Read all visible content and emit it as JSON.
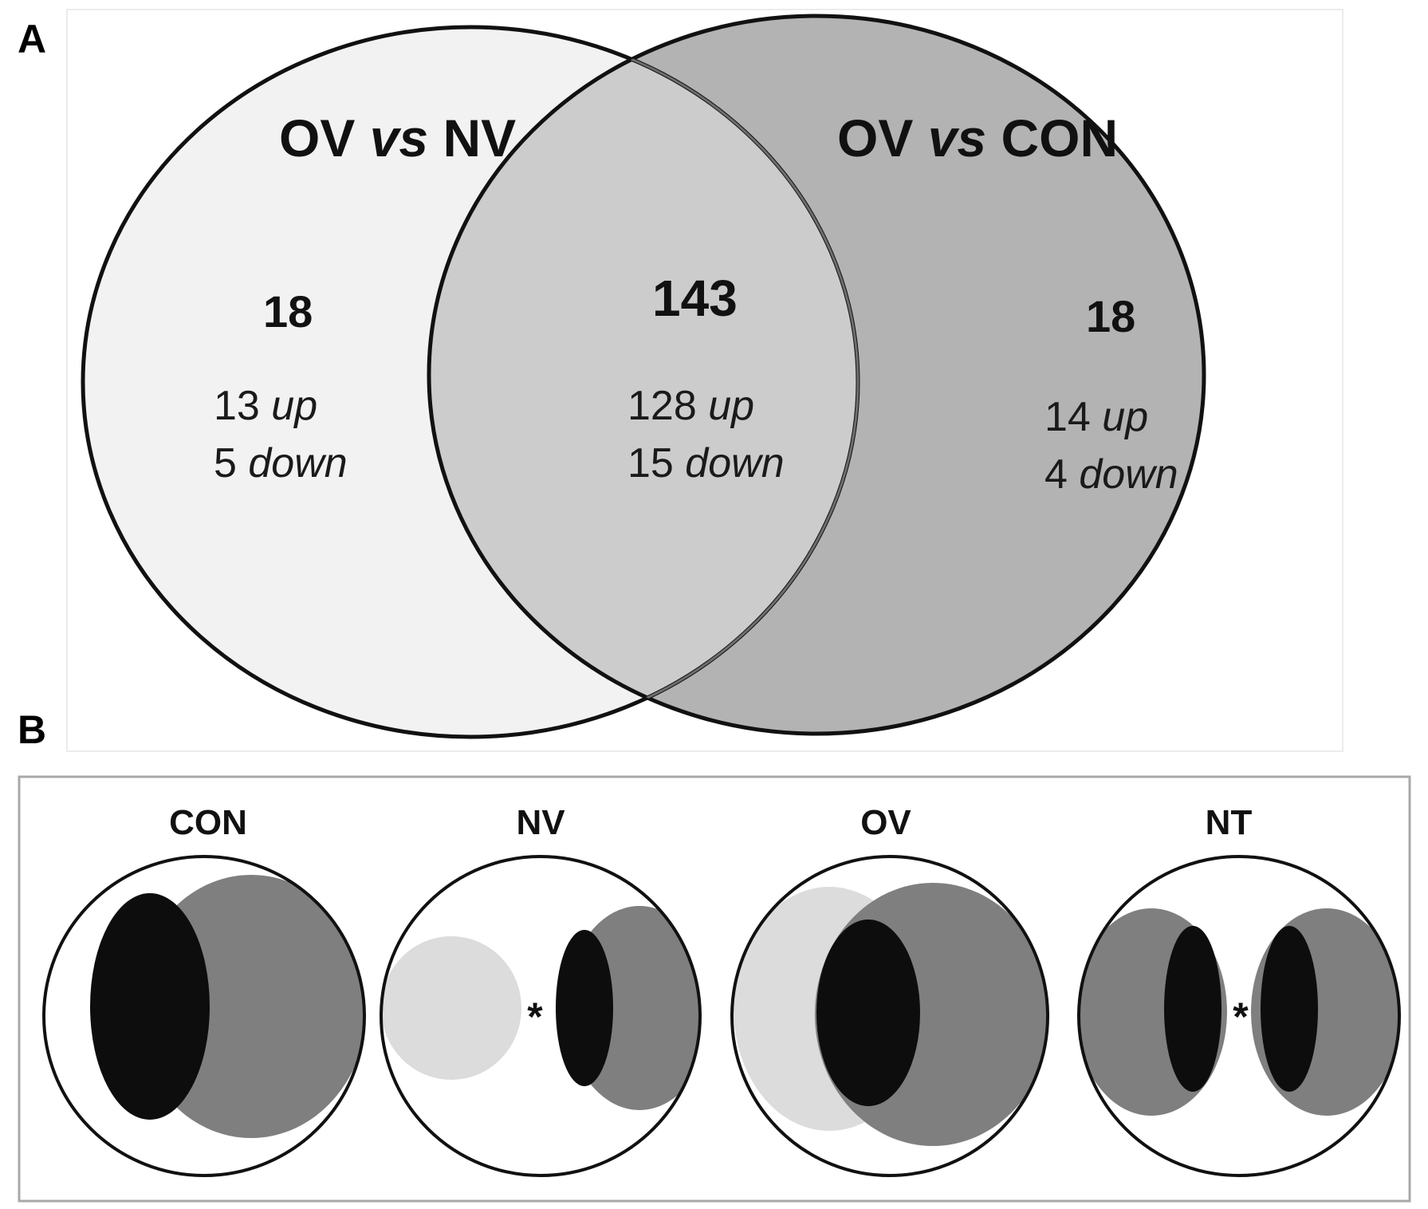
{
  "panel_a": {
    "label": "A",
    "left_set": {
      "prefix": "OV ",
      "vs": "vs",
      "suffix": " NV",
      "count": "18",
      "up_num": "13",
      "up_word": "up",
      "down_num": "5",
      "down_word": "down"
    },
    "right_set": {
      "prefix": "OV ",
      "vs": "vs",
      "suffix": " CON",
      "count": "18",
      "up_num": "14",
      "up_word": "up",
      "down_num": "4",
      "down_word": "down"
    },
    "overlap": {
      "count": "143",
      "up_num": "128",
      "up_word": "up",
      "down_num": "15",
      "down_word": "down"
    }
  },
  "panel_b": {
    "label": "B",
    "groups": [
      {
        "name": "CON"
      },
      {
        "name": "NV",
        "marker": "*"
      },
      {
        "name": "OV"
      },
      {
        "name": "NT",
        "marker": "*"
      }
    ]
  },
  "colors": {
    "left_circle": "#f2f2f2",
    "right_circle": "#b3b3b3",
    "overlap": "#cccccc",
    "gray_region": "#7f7f7f",
    "black_region": "#0d0d0d",
    "light_region": "#dcdcdc"
  }
}
